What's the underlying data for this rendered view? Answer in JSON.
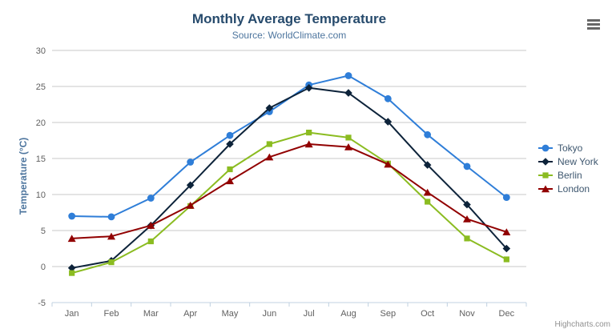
{
  "credits": "Highcharts.com",
  "colors": {
    "title": "#274b6d",
    "subtitle": "#4d759e",
    "axis_title": "#4d759e",
    "tick_label": "#606060",
    "gridline": "#c8c8c8",
    "axis_line": "#c0d0e0",
    "legend_text": "#3e576f",
    "credits_text": "#909090",
    "menu_icon": "#666666",
    "background": "#ffffff"
  },
  "context_menu_icon": "hamburger-icon",
  "chart_data": {
    "type": "line",
    "title": "Monthly Average Temperature",
    "subtitle": "Source: WorldClimate.com",
    "categories": [
      "Jan",
      "Feb",
      "Mar",
      "Apr",
      "May",
      "Jun",
      "Jul",
      "Aug",
      "Sep",
      "Oct",
      "Nov",
      "Dec"
    ],
    "xlabel": "",
    "ylabel": "Temperature (°C)",
    "ylim": [
      -5,
      30
    ],
    "yticks": [
      -5,
      0,
      5,
      10,
      15,
      20,
      25,
      30
    ],
    "grid": "horizontal",
    "legend_position": "right-middle",
    "series": [
      {
        "name": "Tokyo",
        "color": "#2f7ed8",
        "marker": "circle",
        "values": [
          7.0,
          6.9,
          9.5,
          14.5,
          18.2,
          21.5,
          25.2,
          26.5,
          23.3,
          18.3,
          13.9,
          9.6
        ]
      },
      {
        "name": "New York",
        "color": "#0d233a",
        "marker": "diamond",
        "values": [
          -0.2,
          0.8,
          5.7,
          11.3,
          17.0,
          22.0,
          24.8,
          24.1,
          20.1,
          14.1,
          8.6,
          2.5
        ]
      },
      {
        "name": "Berlin",
        "color": "#8bbc21",
        "marker": "square",
        "values": [
          -0.9,
          0.6,
          3.5,
          8.4,
          13.5,
          17.0,
          18.6,
          17.9,
          14.3,
          9.0,
          3.9,
          1.0
        ]
      },
      {
        "name": "London",
        "color": "#910000",
        "marker": "triangle",
        "values": [
          3.9,
          4.2,
          5.7,
          8.5,
          11.9,
          15.2,
          17.0,
          16.6,
          14.2,
          10.3,
          6.6,
          4.8
        ]
      }
    ]
  }
}
